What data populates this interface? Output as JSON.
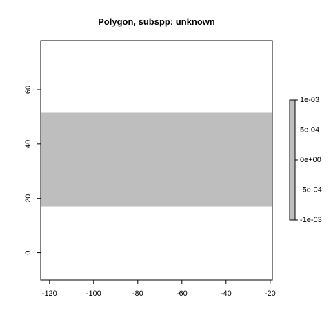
{
  "chart_data": {
    "type": "heatmap",
    "title": "Polygon, subspp: unknown",
    "xlabel": "",
    "ylabel": "",
    "xlim": [
      -124,
      -19
    ],
    "ylim": [
      -10,
      78
    ],
    "x_ticks": [
      "-120",
      "-100",
      "-80",
      "-60",
      "-40",
      "-20"
    ],
    "x_tick_values": [
      -120,
      -100,
      -80,
      -60,
      -40,
      -20
    ],
    "y_ticks": [
      "0",
      "20",
      "40",
      "60"
    ],
    "y_tick_values": [
      0,
      20,
      40,
      60
    ],
    "polygon": {
      "xmin": -124,
      "xmax": -19,
      "ymin": 17,
      "ymax": 51.5,
      "fill": "#bebebe"
    },
    "legend": {
      "placement": "right",
      "range": [
        -0.001,
        0.001
      ],
      "labels": [
        "1e-03",
        "5e-04",
        "0e+00",
        "-5e-04",
        "-1e-03"
      ],
      "label_values": [
        0.001,
        0.0005,
        0,
        -0.0005,
        -0.001
      ],
      "fill": "#bebebe"
    },
    "grid": false
  }
}
